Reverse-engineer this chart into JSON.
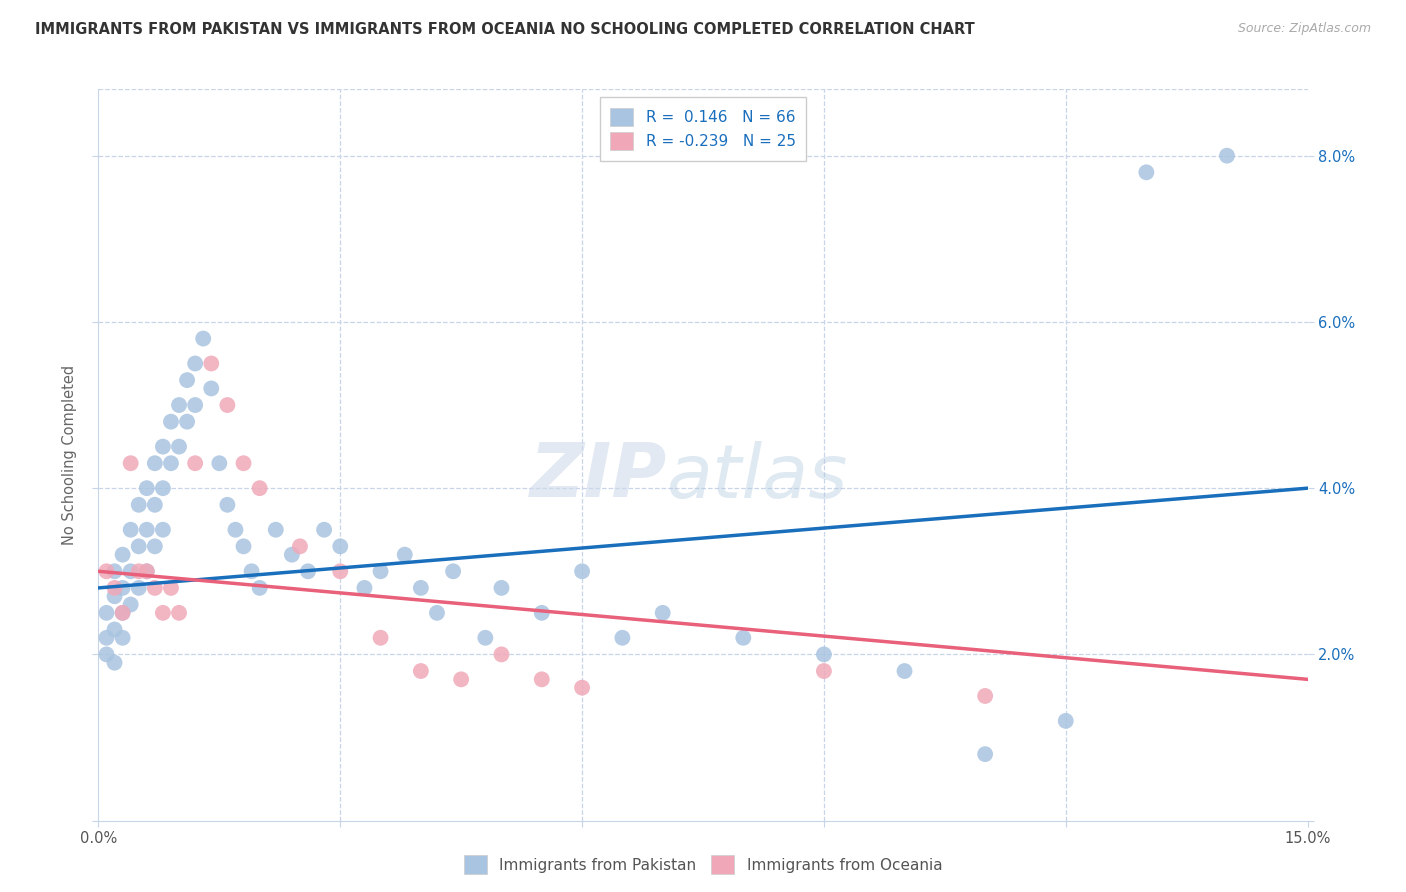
{
  "title": "IMMIGRANTS FROM PAKISTAN VS IMMIGRANTS FROM OCEANIA NO SCHOOLING COMPLETED CORRELATION CHART",
  "source": "Source: ZipAtlas.com",
  "ylabel": "No Schooling Completed",
  "xlabel": "",
  "xlim": [
    0.0,
    0.15
  ],
  "ylim": [
    0.0,
    0.088
  ],
  "pakistan_color": "#a8c4e0",
  "oceania_color": "#f0a8b8",
  "pakistan_line_color": "#1a6fbd",
  "oceania_line_color": "#e8607a",
  "R_pakistan": 0.146,
  "N_pakistan": 66,
  "R_oceania": -0.239,
  "N_oceania": 25,
  "background_color": "#ffffff",
  "grid_color": "#c8d4e8",
  "watermark": "ZIPatlas",
  "pak_line_x0": 0.0,
  "pak_line_y0": 0.028,
  "pak_line_x1": 0.15,
  "pak_line_y1": 0.04,
  "oce_line_x0": 0.0,
  "oce_line_y0": 0.03,
  "oce_line_x1": 0.15,
  "oce_line_y1": 0.017,
  "pakistan_pts_x": [
    0.001,
    0.001,
    0.001,
    0.002,
    0.002,
    0.002,
    0.002,
    0.003,
    0.003,
    0.003,
    0.003,
    0.004,
    0.004,
    0.004,
    0.005,
    0.005,
    0.005,
    0.006,
    0.006,
    0.006,
    0.007,
    0.007,
    0.007,
    0.008,
    0.008,
    0.008,
    0.009,
    0.009,
    0.01,
    0.01,
    0.011,
    0.011,
    0.012,
    0.012,
    0.013,
    0.014,
    0.015,
    0.016,
    0.017,
    0.018,
    0.019,
    0.02,
    0.022,
    0.024,
    0.026,
    0.028,
    0.03,
    0.033,
    0.035,
    0.038,
    0.04,
    0.042,
    0.044,
    0.048,
    0.05,
    0.055,
    0.06,
    0.065,
    0.07,
    0.08,
    0.09,
    0.1,
    0.11,
    0.12,
    0.13,
    0.14
  ],
  "pakistan_pts_y": [
    0.025,
    0.022,
    0.02,
    0.03,
    0.027,
    0.023,
    0.019,
    0.032,
    0.028,
    0.025,
    0.022,
    0.035,
    0.03,
    0.026,
    0.038,
    0.033,
    0.028,
    0.04,
    0.035,
    0.03,
    0.043,
    0.038,
    0.033,
    0.045,
    0.04,
    0.035,
    0.048,
    0.043,
    0.05,
    0.045,
    0.053,
    0.048,
    0.055,
    0.05,
    0.058,
    0.052,
    0.043,
    0.038,
    0.035,
    0.033,
    0.03,
    0.028,
    0.035,
    0.032,
    0.03,
    0.035,
    0.033,
    0.028,
    0.03,
    0.032,
    0.028,
    0.025,
    0.03,
    0.022,
    0.028,
    0.025,
    0.03,
    0.022,
    0.025,
    0.022,
    0.02,
    0.018,
    0.008,
    0.012,
    0.078,
    0.08
  ],
  "oceania_pts_x": [
    0.001,
    0.002,
    0.003,
    0.004,
    0.005,
    0.006,
    0.007,
    0.008,
    0.009,
    0.01,
    0.012,
    0.014,
    0.016,
    0.018,
    0.02,
    0.025,
    0.03,
    0.035,
    0.04,
    0.045,
    0.05,
    0.055,
    0.06,
    0.09,
    0.11
  ],
  "oceania_pts_y": [
    0.03,
    0.028,
    0.025,
    0.043,
    0.03,
    0.03,
    0.028,
    0.025,
    0.028,
    0.025,
    0.043,
    0.055,
    0.05,
    0.043,
    0.04,
    0.033,
    0.03,
    0.022,
    0.018,
    0.017,
    0.02,
    0.017,
    0.016,
    0.018,
    0.015
  ]
}
